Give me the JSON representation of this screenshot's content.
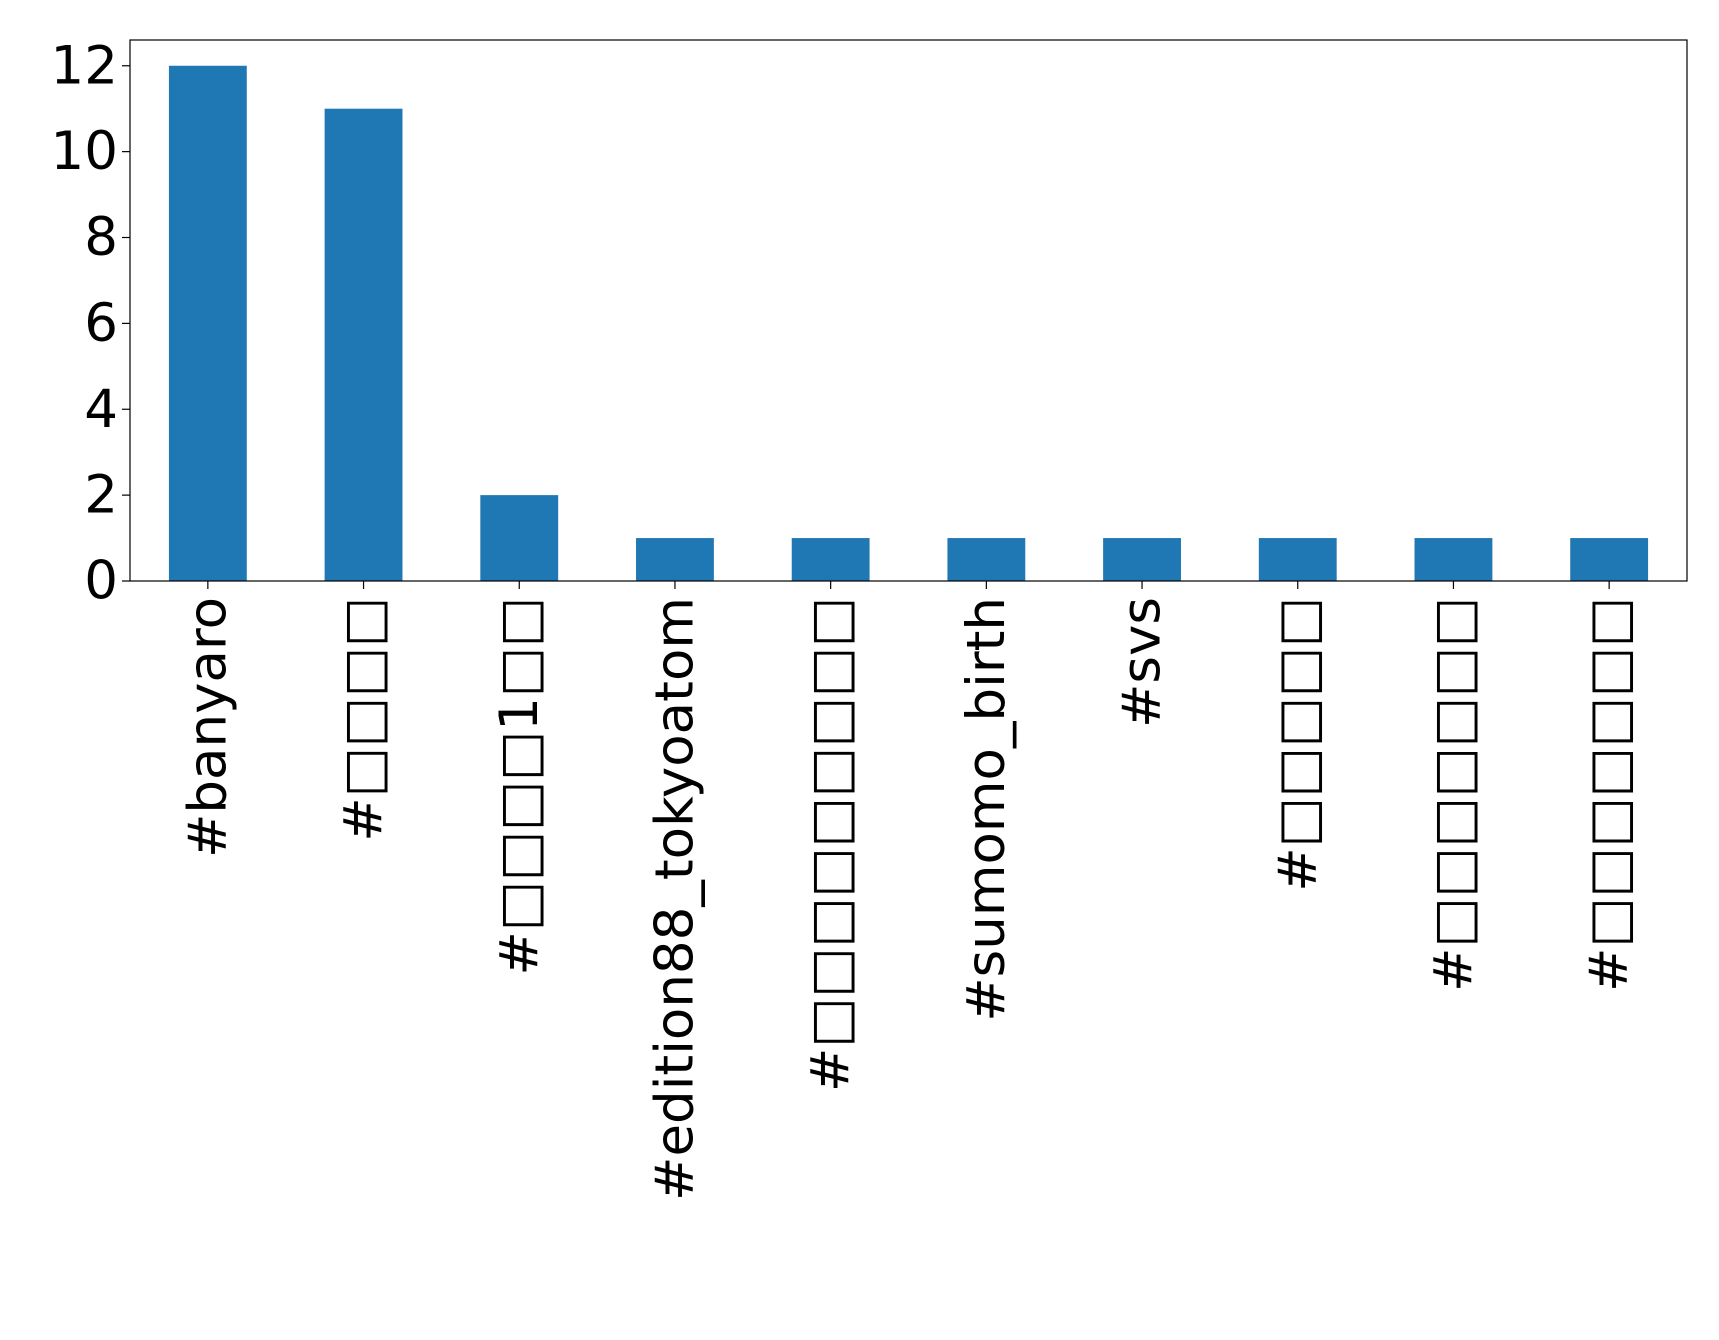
{
  "chart_data": {
    "type": "bar",
    "categories": [
      "#banyaro",
      "#□□□□",
      "#□□□□1□□",
      "#edition88_tokyoatom",
      "#□□□□□□□□□",
      "#sumomo_birth",
      "#svs",
      "#□□□□□",
      "#□□□□□□□",
      "#□□□□□□□"
    ],
    "values": [
      12,
      11,
      2,
      1,
      1,
      1,
      1,
      1,
      1,
      1
    ],
    "color": "#1f77b4",
    "ylim": [
      0,
      12.6
    ],
    "yticks": [
      0,
      2,
      4,
      6,
      8,
      10,
      12
    ],
    "grid": false
  }
}
